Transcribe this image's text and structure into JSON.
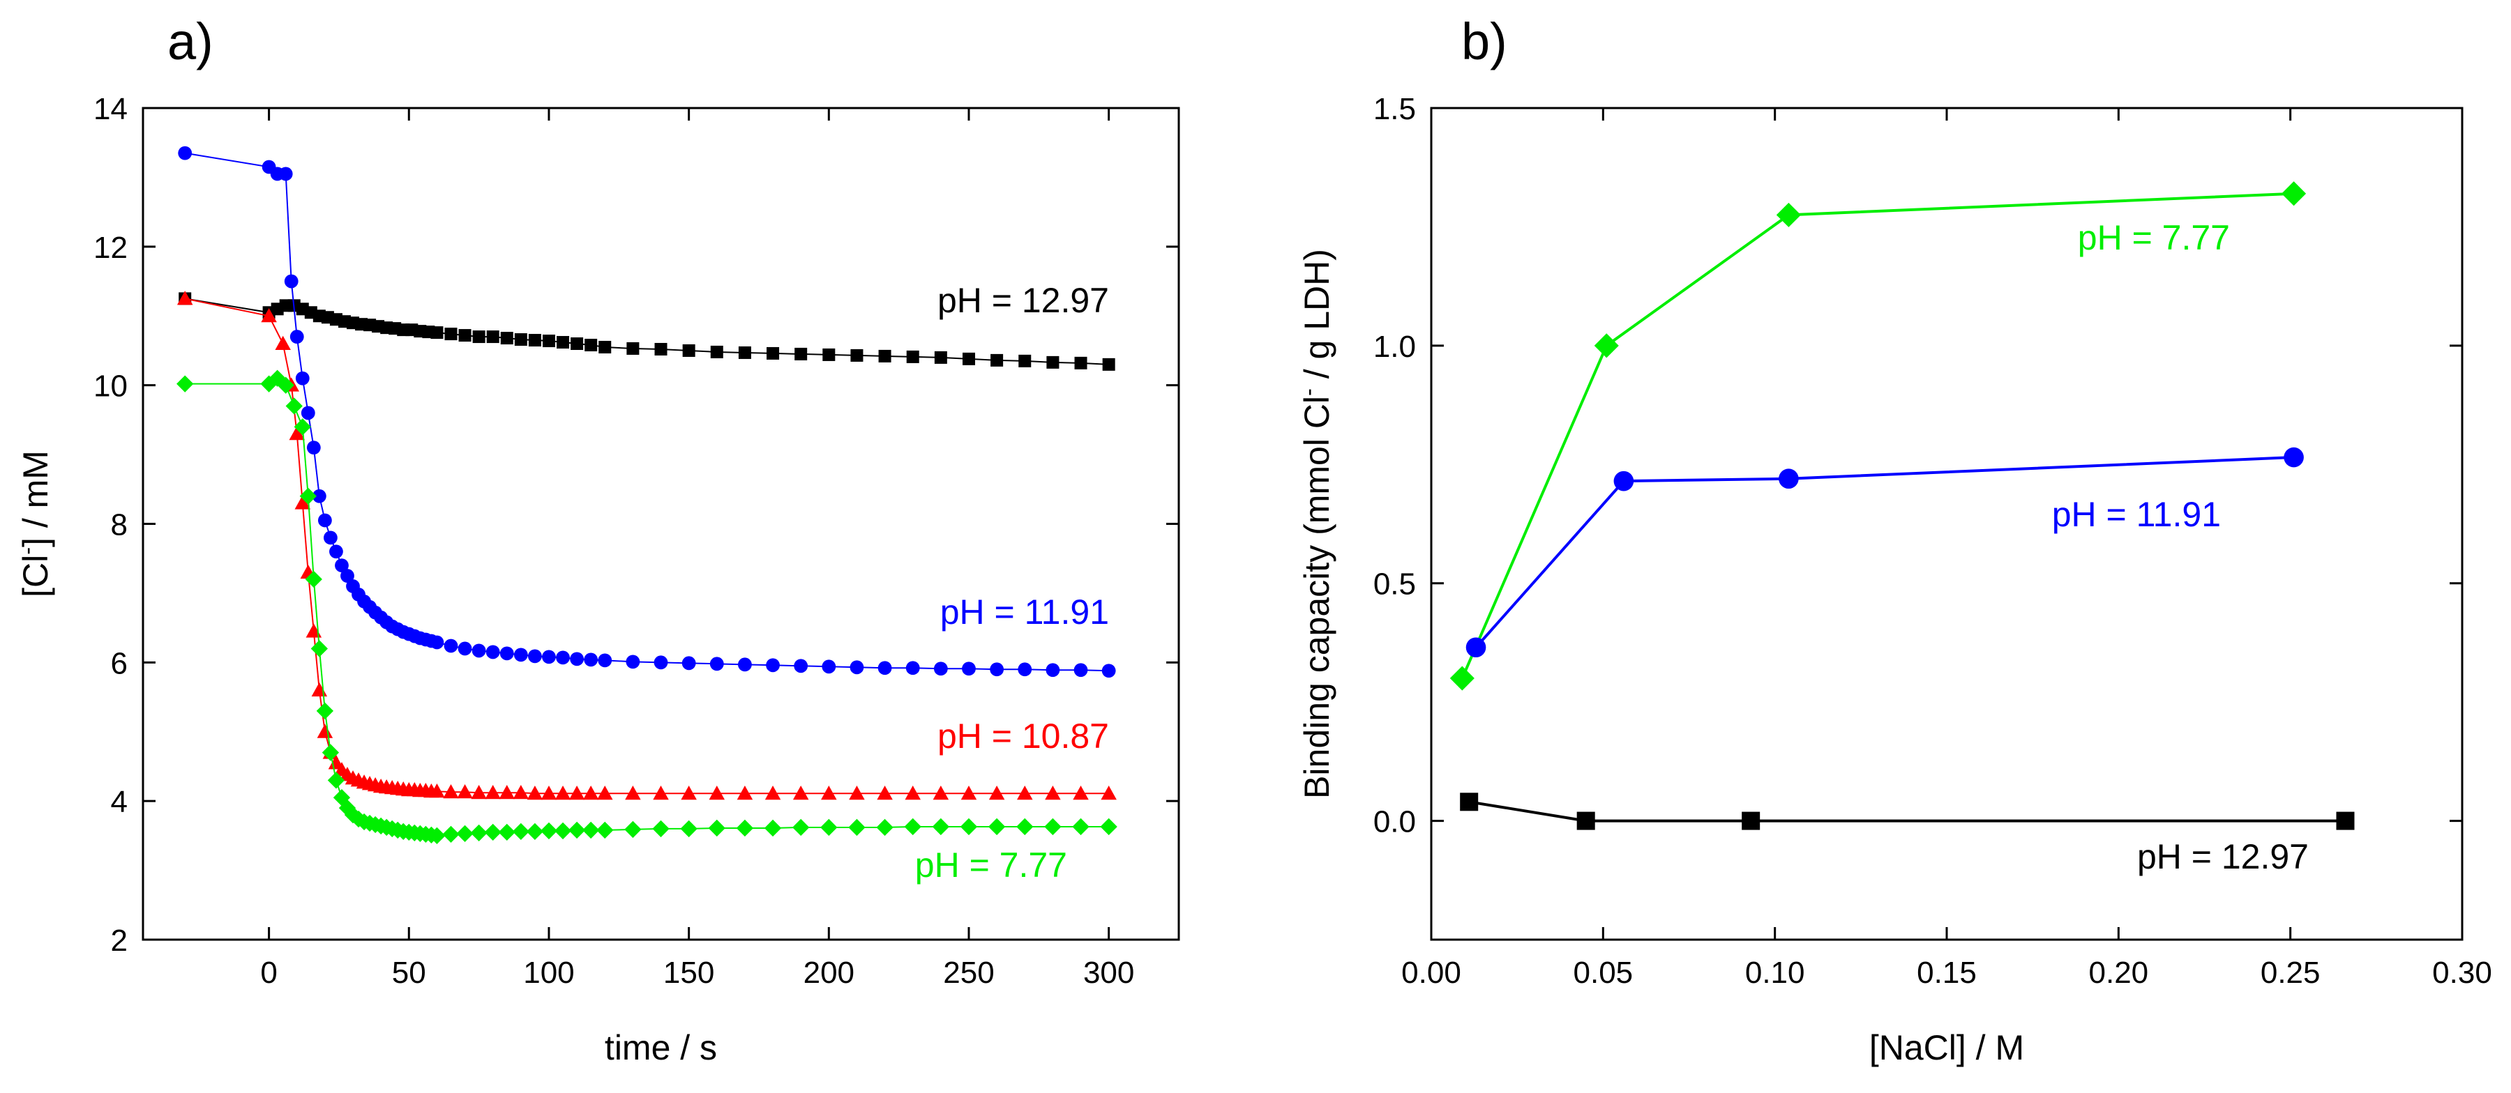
{
  "figure": {
    "panel_a_label": "a)",
    "panel_b_label": "b)"
  },
  "chart_data": [
    {
      "type": "scatter",
      "panel": "a)",
      "title": "",
      "xlabel": "time / s",
      "ylabel_main": "[Cl",
      "ylabel_sup": "-",
      "ylabel_tail": "] / mM",
      "xlim": [
        -45,
        325
      ],
      "ylim": [
        2,
        14
      ],
      "xticks": [
        0,
        50,
        100,
        150,
        200,
        250,
        300
      ],
      "yticks": [
        2,
        4,
        6,
        8,
        10,
        12,
        14
      ],
      "grid": false,
      "series": [
        {
          "name": "pH = 12.97",
          "label": "pH = 12.97",
          "color": "#000000",
          "marker": "square",
          "x": [
            -30,
            0,
            3,
            6,
            9,
            12,
            15,
            18,
            21,
            24,
            27,
            30,
            33,
            36,
            39,
            42,
            45,
            48,
            51,
            54,
            57,
            60,
            65,
            70,
            75,
            80,
            85,
            90,
            95,
            100,
            105,
            110,
            115,
            120,
            130,
            140,
            150,
            160,
            170,
            180,
            190,
            200,
            210,
            220,
            230,
            240,
            250,
            260,
            270,
            280,
            290,
            300
          ],
          "y": [
            11.25,
            11.05,
            11.1,
            11.15,
            11.15,
            11.1,
            11.05,
            11.0,
            10.98,
            10.95,
            10.92,
            10.9,
            10.88,
            10.87,
            10.85,
            10.83,
            10.82,
            10.8,
            10.8,
            10.78,
            10.77,
            10.76,
            10.74,
            10.72,
            10.7,
            10.7,
            10.68,
            10.66,
            10.65,
            10.64,
            10.62,
            10.6,
            10.58,
            10.55,
            10.53,
            10.52,
            10.5,
            10.48,
            10.47,
            10.46,
            10.45,
            10.44,
            10.43,
            10.42,
            10.41,
            10.4,
            10.38,
            10.36,
            10.35,
            10.33,
            10.32,
            10.3
          ]
        },
        {
          "name": "pH = 11.91",
          "label": "pH = 11.91",
          "color": "#0000ff",
          "marker": "circle",
          "x": [
            -30,
            0,
            3,
            6,
            8,
            10,
            12,
            14,
            16,
            18,
            20,
            22,
            24,
            26,
            28,
            30,
            32,
            34,
            36,
            38,
            40,
            42,
            44,
            46,
            48,
            50,
            52,
            54,
            56,
            58,
            60,
            65,
            70,
            75,
            80,
            85,
            90,
            95,
            100,
            105,
            110,
            115,
            120,
            130,
            140,
            150,
            160,
            170,
            180,
            190,
            200,
            210,
            220,
            230,
            240,
            250,
            260,
            270,
            280,
            290,
            300
          ],
          "y": [
            13.35,
            13.15,
            13.05,
            13.05,
            11.5,
            10.7,
            10.1,
            9.6,
            9.1,
            8.4,
            8.05,
            7.8,
            7.6,
            7.4,
            7.25,
            7.1,
            6.98,
            6.88,
            6.8,
            6.72,
            6.65,
            6.58,
            6.52,
            6.48,
            6.44,
            6.41,
            6.38,
            6.35,
            6.33,
            6.31,
            6.29,
            6.24,
            6.2,
            6.17,
            6.15,
            6.13,
            6.11,
            6.09,
            6.08,
            6.07,
            6.05,
            6.04,
            6.03,
            6.01,
            6.0,
            5.99,
            5.98,
            5.97,
            5.96,
            5.95,
            5.94,
            5.93,
            5.92,
            5.92,
            5.91,
            5.91,
            5.9,
            5.9,
            5.89,
            5.89,
            5.88
          ]
        },
        {
          "name": "pH = 10.87",
          "label": "pH = 10.87",
          "color": "#ff0000",
          "marker": "triangle",
          "x": [
            -30,
            0,
            5,
            8,
            10,
            12,
            14,
            16,
            18,
            20,
            22,
            24,
            26,
            28,
            30,
            32,
            34,
            36,
            38,
            40,
            42,
            44,
            46,
            48,
            50,
            52,
            54,
            56,
            58,
            60,
            65,
            70,
            75,
            80,
            85,
            90,
            95,
            100,
            105,
            110,
            115,
            120,
            130,
            140,
            150,
            160,
            170,
            180,
            190,
            200,
            210,
            220,
            230,
            240,
            250,
            260,
            270,
            280,
            290,
            300
          ],
          "y": [
            11.25,
            11.0,
            10.6,
            10.0,
            9.3,
            8.3,
            7.3,
            6.45,
            5.6,
            5.0,
            4.7,
            4.55,
            4.45,
            4.38,
            4.33,
            4.3,
            4.27,
            4.25,
            4.23,
            4.21,
            4.2,
            4.19,
            4.18,
            4.17,
            4.16,
            4.16,
            4.15,
            4.15,
            4.14,
            4.14,
            4.13,
            4.13,
            4.12,
            4.12,
            4.12,
            4.12,
            4.11,
            4.11,
            4.11,
            4.11,
            4.11,
            4.11,
            4.11,
            4.11,
            4.11,
            4.11,
            4.11,
            4.11,
            4.11,
            4.11,
            4.11,
            4.11,
            4.11,
            4.11,
            4.11,
            4.11,
            4.11,
            4.11,
            4.11,
            4.11
          ]
        },
        {
          "name": "pH = 7.77",
          "label": "pH = 7.77",
          "color": "#00ee00",
          "marker": "diamond",
          "x": [
            -30,
            0,
            3,
            6,
            9,
            12,
            14,
            16,
            18,
            20,
            22,
            24,
            26,
            28,
            30,
            32,
            34,
            36,
            38,
            40,
            42,
            44,
            46,
            48,
            50,
            52,
            54,
            56,
            58,
            60,
            65,
            70,
            75,
            80,
            85,
            90,
            95,
            100,
            105,
            110,
            115,
            120,
            130,
            140,
            150,
            160,
            170,
            180,
            190,
            200,
            210,
            220,
            230,
            240,
            250,
            260,
            270,
            280,
            290,
            300
          ],
          "y": [
            10.02,
            10.02,
            10.1,
            10.0,
            9.7,
            9.4,
            8.4,
            7.2,
            6.2,
            5.3,
            4.7,
            4.3,
            4.05,
            3.9,
            3.8,
            3.74,
            3.7,
            3.68,
            3.66,
            3.64,
            3.62,
            3.6,
            3.58,
            3.56,
            3.55,
            3.54,
            3.53,
            3.52,
            3.51,
            3.5,
            3.52,
            3.53,
            3.54,
            3.55,
            3.55,
            3.56,
            3.56,
            3.57,
            3.57,
            3.58,
            3.58,
            3.58,
            3.59,
            3.6,
            3.6,
            3.61,
            3.61,
            3.61,
            3.62,
            3.62,
            3.62,
            3.62,
            3.63,
            3.63,
            3.63,
            3.63,
            3.63,
            3.63,
            3.63,
            3.63
          ]
        }
      ]
    },
    {
      "type": "line",
      "panel": "b)",
      "title": "",
      "xlabel": "[NaCl] / M",
      "ylabel_main": "Binding capacity (mmol Cl",
      "ylabel_sup": "-",
      "ylabel_tail": " / g LDH)",
      "xlim": [
        0.0,
        0.3
      ],
      "ylim": [
        -0.25,
        1.5
      ],
      "xticks": [
        0.0,
        0.05,
        0.1,
        0.15,
        0.2,
        0.25,
        0.3
      ],
      "xtick_labels": [
        "0.00",
        "0.05",
        "0.10",
        "0.15",
        "0.20",
        "0.25",
        "0.30"
      ],
      "yticks": [
        0.0,
        0.5,
        1.0,
        1.5
      ],
      "ytick_labels": [
        "0.0",
        "0.5",
        "1.0",
        "1.5"
      ],
      "grid": false,
      "series": [
        {
          "name": "pH = 7.77",
          "label": "pH = 7.77",
          "color": "#00ee00",
          "marker": "diamond",
          "x": [
            0.009,
            0.051,
            0.104,
            0.251
          ],
          "y": [
            0.3,
            1.0,
            1.275,
            1.32
          ]
        },
        {
          "name": "pH = 11.91",
          "label": "pH = 11.91",
          "color": "#0000ff",
          "marker": "circle",
          "x": [
            0.013,
            0.056,
            0.104,
            0.251
          ],
          "y": [
            0.365,
            0.715,
            0.72,
            0.765
          ]
        },
        {
          "name": "pH = 12.97",
          "label": "pH = 12.97",
          "color": "#000000",
          "marker": "square",
          "x": [
            0.011,
            0.045,
            0.093,
            0.266
          ],
          "y": [
            0.04,
            0.0,
            0.0,
            0.0
          ]
        }
      ]
    }
  ]
}
